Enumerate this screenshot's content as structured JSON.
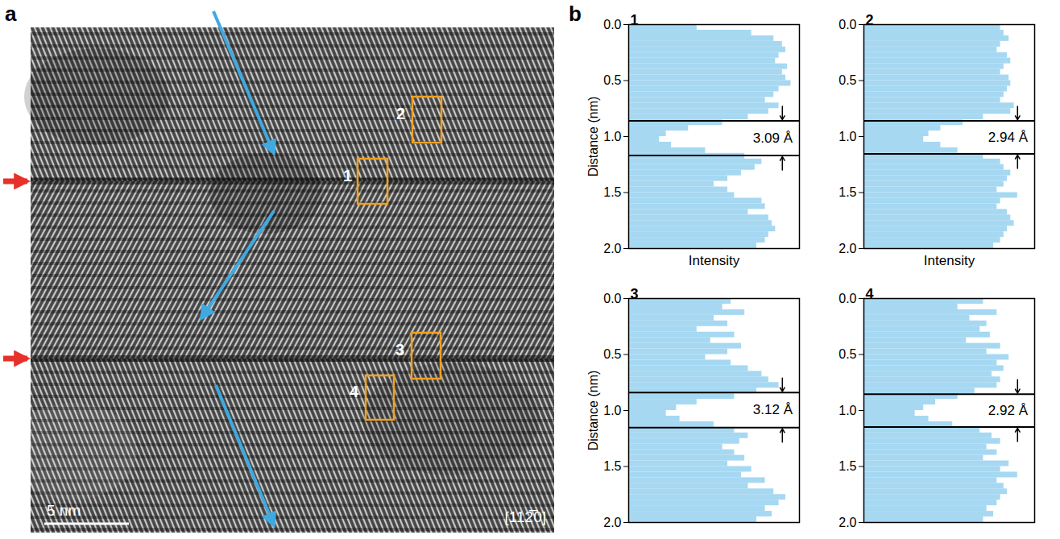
{
  "image_panel": {
    "letter": "a",
    "scale_bar": "5 nm",
    "zone_axis": "[112̅0]",
    "boxes": [
      "1",
      "2",
      "3",
      "4"
    ]
  },
  "chart_panel_letter": "b",
  "chart_data": [
    {
      "type": "bar",
      "orientation": "horizontal",
      "title": "1",
      "y_label": "Distance (nm)",
      "x_label": "Intensity",
      "tick_labels": "y",
      "color": "#a6d8f2",
      "xlim": [
        0,
        1
      ],
      "ylim": [
        2,
        0
      ],
      "yticks": [
        {
          "value": 0,
          "label": "0.0"
        },
        {
          "value": 0.5,
          "label": "0.5"
        },
        {
          "value": 1,
          "label": "1.0"
        },
        {
          "value": 1.5,
          "label": "1.5"
        },
        {
          "value": 2,
          "label": "2.0"
        }
      ],
      "y": [
        0,
        0.05,
        0.1,
        0.15,
        0.2,
        0.25,
        0.3,
        0.35,
        0.4,
        0.45,
        0.5,
        0.55,
        0.6,
        0.65,
        0.7,
        0.75,
        0.8,
        0.85,
        0.9,
        0.95,
        1,
        1.05,
        1.1,
        1.15,
        1.2,
        1.25,
        1.3,
        1.35,
        1.4,
        1.45,
        1.5,
        1.55,
        1.6,
        1.65,
        1.7,
        1.75,
        1.8,
        1.85,
        1.9,
        1.95
      ],
      "values": [
        0.4,
        0.72,
        0.85,
        0.9,
        0.92,
        0.88,
        0.86,
        0.93,
        0.9,
        0.92,
        0.95,
        0.88,
        0.85,
        0.8,
        0.88,
        0.82,
        0.7,
        0.55,
        0.35,
        0.22,
        0.18,
        0.25,
        0.45,
        0.68,
        0.78,
        0.74,
        0.66,
        0.58,
        0.5,
        0.58,
        0.62,
        0.78,
        0.8,
        0.7,
        0.82,
        0.84,
        0.86,
        0.82,
        0.8,
        0.75
      ],
      "marker_lines": [
        0.86,
        1.169
      ],
      "annotation": "3.09 Å"
    },
    {
      "type": "bar",
      "orientation": "horizontal",
      "title": "2",
      "x_label": "Intensity",
      "tick_labels": "y",
      "color": "#a6d8f2",
      "xlim": [
        0,
        1
      ],
      "ylim": [
        2,
        0
      ],
      "yticks": [
        {
          "value": 0,
          "label": "0.0"
        },
        {
          "value": 0.5,
          "label": "0.5"
        },
        {
          "value": 1,
          "label": "1.0"
        },
        {
          "value": 1.5,
          "label": "1.5"
        },
        {
          "value": 2,
          "label": "2.0"
        }
      ],
      "y": [
        0,
        0.05,
        0.1,
        0.15,
        0.2,
        0.25,
        0.3,
        0.35,
        0.4,
        0.45,
        0.5,
        0.55,
        0.6,
        0.65,
        0.7,
        0.75,
        0.8,
        0.85,
        0.9,
        0.95,
        1,
        1.05,
        1.1,
        1.15,
        1.2,
        1.25,
        1.3,
        1.35,
        1.4,
        1.45,
        1.5,
        1.55,
        1.6,
        1.65,
        1.7,
        1.75,
        1.8,
        1.85,
        1.9,
        1.95
      ],
      "values": [
        0.8,
        0.82,
        0.85,
        0.8,
        0.78,
        0.84,
        0.86,
        0.82,
        0.8,
        0.85,
        0.86,
        0.84,
        0.82,
        0.8,
        0.88,
        0.86,
        0.7,
        0.58,
        0.45,
        0.38,
        0.35,
        0.45,
        0.55,
        0.7,
        0.8,
        0.82,
        0.86,
        0.84,
        0.82,
        0.78,
        0.9,
        0.8,
        0.78,
        0.84,
        0.86,
        0.88,
        0.84,
        0.82,
        0.8,
        0.76
      ],
      "marker_lines": [
        0.86,
        1.154
      ],
      "annotation": "2.94 Å"
    },
    {
      "type": "bar",
      "orientation": "horizontal",
      "title": "3",
      "y_label": "Distance (nm)",
      "tick_labels": "y",
      "color": "#a6d8f2",
      "xlim": [
        0,
        1
      ],
      "ylim": [
        2,
        0
      ],
      "yticks": [
        {
          "value": 0,
          "label": "0.0"
        },
        {
          "value": 0.5,
          "label": "0.5"
        },
        {
          "value": 1,
          "label": "1.0"
        },
        {
          "value": 1.5,
          "label": "1.5"
        },
        {
          "value": 2,
          "label": "2.0"
        }
      ],
      "y": [
        0,
        0.05,
        0.1,
        0.15,
        0.2,
        0.25,
        0.3,
        0.35,
        0.4,
        0.45,
        0.5,
        0.55,
        0.6,
        0.65,
        0.7,
        0.75,
        0.8,
        0.85,
        0.9,
        0.95,
        1,
        1.05,
        1.1,
        1.15,
        1.2,
        1.25,
        1.3,
        1.35,
        1.4,
        1.45,
        1.5,
        1.55,
        1.6,
        1.65,
        1.7,
        1.75,
        1.8,
        1.85,
        1.9,
        1.95
      ],
      "values": [
        0.6,
        0.55,
        0.68,
        0.5,
        0.58,
        0.4,
        0.62,
        0.48,
        0.66,
        0.58,
        0.45,
        0.6,
        0.7,
        0.78,
        0.82,
        0.88,
        0.75,
        0.62,
        0.4,
        0.28,
        0.22,
        0.3,
        0.5,
        0.62,
        0.7,
        0.65,
        0.55,
        0.62,
        0.68,
        0.58,
        0.72,
        0.66,
        0.8,
        0.7,
        0.85,
        0.92,
        0.88,
        0.8,
        0.84,
        0.75
      ],
      "marker_lines": [
        0.84,
        1.152
      ],
      "annotation": "3.12 Å"
    },
    {
      "type": "bar",
      "orientation": "horizontal",
      "title": "4",
      "tick_labels": "y",
      "color": "#a6d8f2",
      "xlim": [
        0,
        1
      ],
      "ylim": [
        2,
        0
      ],
      "yticks": [
        {
          "value": 0,
          "label": "0.0"
        },
        {
          "value": 0.5,
          "label": "0.5"
        },
        {
          "value": 1,
          "label": "1.0"
        },
        {
          "value": 1.5,
          "label": "1.5"
        },
        {
          "value": 2,
          "label": "2.0"
        }
      ],
      "y": [
        0,
        0.05,
        0.1,
        0.15,
        0.2,
        0.25,
        0.3,
        0.35,
        0.4,
        0.45,
        0.5,
        0.55,
        0.6,
        0.65,
        0.7,
        0.75,
        0.8,
        0.85,
        0.9,
        0.95,
        1,
        1.05,
        1.1,
        1.15,
        1.2,
        1.25,
        1.3,
        1.35,
        1.4,
        1.45,
        1.5,
        1.55,
        1.6,
        1.65,
        1.7,
        1.75,
        1.8,
        1.85,
        1.9,
        1.95
      ],
      "values": [
        0.7,
        0.55,
        0.78,
        0.62,
        0.72,
        0.68,
        0.74,
        0.6,
        0.8,
        0.72,
        0.85,
        0.78,
        0.82,
        0.75,
        0.8,
        0.78,
        0.65,
        0.55,
        0.42,
        0.35,
        0.3,
        0.38,
        0.52,
        0.68,
        0.75,
        0.8,
        0.72,
        0.78,
        0.7,
        0.85,
        0.8,
        0.9,
        0.78,
        0.82,
        0.84,
        0.8,
        0.78,
        0.72,
        0.76,
        0.7
      ],
      "marker_lines": [
        0.855,
        1.147
      ],
      "annotation": "2.92 Å"
    }
  ]
}
